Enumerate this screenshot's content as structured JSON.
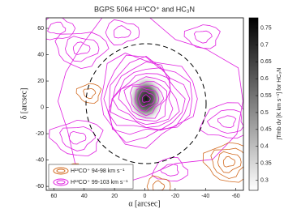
{
  "chart_data": {
    "type": "contour",
    "title": "BGPS 5064 H¹³CO⁺ and HC₃N",
    "x_label": "α [arcsec]",
    "y_label": "δ [arcsec]",
    "colorbar_label": "∫Tmb dv [K km s⁻¹] for HC₃N",
    "xlim": [
      65,
      -65
    ],
    "xticks": [
      60,
      40,
      20,
      0,
      -20,
      -40,
      -60
    ],
    "ylim": [
      -63,
      68
    ],
    "yticks": [
      -60,
      -40,
      -20,
      0,
      20,
      40,
      60
    ],
    "clim": [
      0.27,
      0.78
    ],
    "cticks": [
      0.3,
      0.35,
      0.4,
      0.45,
      0.5,
      0.55,
      0.6,
      0.65,
      0.7,
      0.75
    ],
    "series": [
      {
        "name": "H¹³CO⁺ 94-98 km s⁻¹",
        "color": "#d2691e"
      },
      {
        "name": "H¹³CO⁺ 99-103 km s⁻¹",
        "color": "#e020e0"
      }
    ]
  }
}
